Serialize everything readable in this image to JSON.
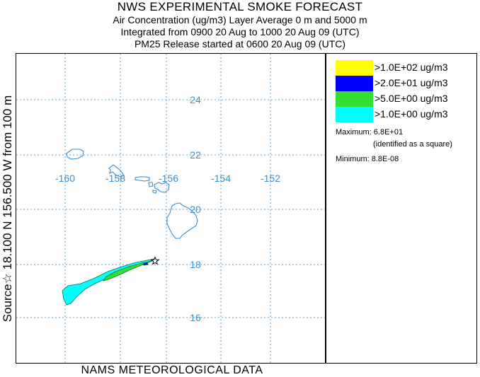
{
  "header": {
    "title": "NWS EXPERIMENTAL SMOKE FORECAST",
    "line2": "Air Concentration (ug/m3) Layer Average    0 m and  5000 m",
    "line3": "Integrated from 0900 20 Aug to 1000 20 Aug 09 (UTC)",
    "line4": "PM25 Release started at 0600 20 Aug 09 (UTC)"
  },
  "side_label": "Source☆ 18.100  N 156.500  W       from  100 m",
  "footer": "NAMS METEOROLOGICAL DATA",
  "map": {
    "longitude_labels": [
      "-160",
      "-158",
      "-156",
      "-154",
      "-152"
    ],
    "latitude_labels": [
      "24",
      "22",
      "20",
      "18",
      "16"
    ],
    "grid_color": "#5aa0d6",
    "label_color": "#3a8fc8",
    "coast_color": "#3a8fc8",
    "source_marker": "star-icon"
  },
  "legend": {
    "items": [
      {
        "label": ">1.0E+02 ug/m3",
        "color": "#ffff00"
      },
      {
        "label": ">2.0E+01 ug/m3",
        "color": "#0000ff"
      },
      {
        "label": ">5.0E+00 ug/m3",
        "color": "#33dd33"
      },
      {
        "label": ">1.0E+00 ug/m3",
        "color": "#00ffff"
      }
    ],
    "maximum": "Maximum: 6.8E+01",
    "maximum_note": "(identified as a square)",
    "minimum": "Minimum: 8.8E-08"
  }
}
